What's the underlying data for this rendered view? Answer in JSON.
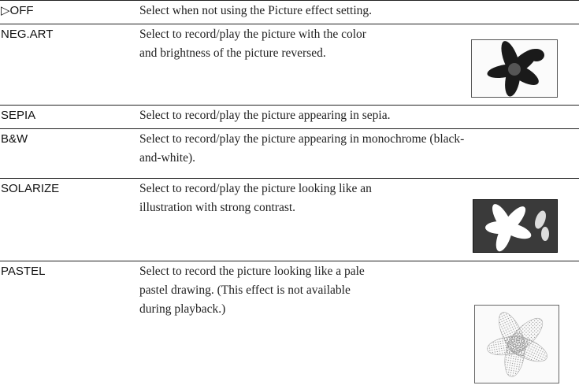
{
  "table": {
    "rows": [
      {
        "label": "▷OFF",
        "lines": [
          "Select when not using the Picture effect setting."
        ]
      },
      {
        "label": "NEG.ART",
        "lines": [
          "Select to record/play the picture with the color",
          "and brightness of the picture reversed."
        ]
      },
      {
        "label": "SEPIA",
        "lines": [
          "Select to record/play the picture appearing in sepia."
        ]
      },
      {
        "label": "B&W",
        "lines": [
          "Select to record/play the picture appearing in monochrome (black-",
          "and-white)."
        ]
      },
      {
        "label": "SOLARIZE",
        "lines": [
          "Select to record/play the picture looking like an",
          "illustration with strong contrast."
        ]
      },
      {
        "label": "PASTEL",
        "lines": [
          "Select to record the picture looking like a pale",
          "pastel drawing. (This effect is not available",
          "during playback.)"
        ]
      }
    ]
  }
}
